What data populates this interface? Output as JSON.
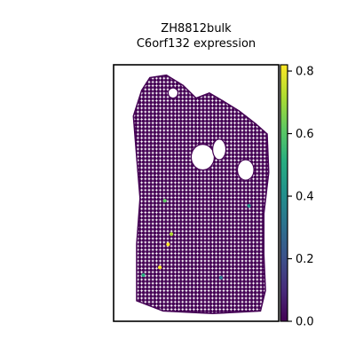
{
  "chart_data": {
    "type": "scatter",
    "title": "ZH8812bulk",
    "subtitle": "C6orf132 expression",
    "xlabel": "",
    "ylabel": "",
    "grid": false,
    "colormap": "viridis",
    "colorbar": {
      "min": 0.0,
      "max": 0.82,
      "ticks": [
        0.0,
        0.2,
        0.4,
        0.6,
        0.8
      ],
      "tick_labels": [
        "0.0",
        "0.2",
        "0.4",
        "0.6",
        "0.8"
      ]
    },
    "background_value": 0.0,
    "tissue_outline": [
      [
        0.22,
        0.05
      ],
      [
        0.32,
        0.04
      ],
      [
        0.42,
        0.08
      ],
      [
        0.5,
        0.13
      ],
      [
        0.58,
        0.11
      ],
      [
        0.66,
        0.14
      ],
      [
        0.76,
        0.18
      ],
      [
        0.86,
        0.23
      ],
      [
        0.93,
        0.27
      ],
      [
        0.94,
        0.42
      ],
      [
        0.91,
        0.58
      ],
      [
        0.91,
        0.74
      ],
      [
        0.92,
        0.88
      ],
      [
        0.89,
        0.96
      ],
      [
        0.6,
        0.97
      ],
      [
        0.3,
        0.96
      ],
      [
        0.14,
        0.92
      ],
      [
        0.14,
        0.7
      ],
      [
        0.16,
        0.52
      ],
      [
        0.14,
        0.36
      ],
      [
        0.12,
        0.2
      ],
      [
        0.17,
        0.1
      ]
    ],
    "holes": [
      {
        "x": 0.54,
        "y": 0.36,
        "rx": 0.07,
        "ry": 0.05
      },
      {
        "x": 0.64,
        "y": 0.33,
        "rx": 0.04,
        "ry": 0.04
      },
      {
        "x": 0.8,
        "y": 0.41,
        "rx": 0.05,
        "ry": 0.04
      },
      {
        "x": 0.36,
        "y": 0.11,
        "rx": 0.03,
        "ry": 0.02
      }
    ],
    "points": [
      {
        "x": 0.31,
        "y": 0.53,
        "value": 0.65
      },
      {
        "x": 0.82,
        "y": 0.55,
        "value": 0.4
      },
      {
        "x": 0.35,
        "y": 0.66,
        "value": 0.72
      },
      {
        "x": 0.33,
        "y": 0.7,
        "value": 0.82
      },
      {
        "x": 0.28,
        "y": 0.79,
        "value": 0.8
      },
      {
        "x": 0.18,
        "y": 0.82,
        "value": 0.48
      },
      {
        "x": 0.65,
        "y": 0.83,
        "value": 0.35
      }
    ]
  }
}
